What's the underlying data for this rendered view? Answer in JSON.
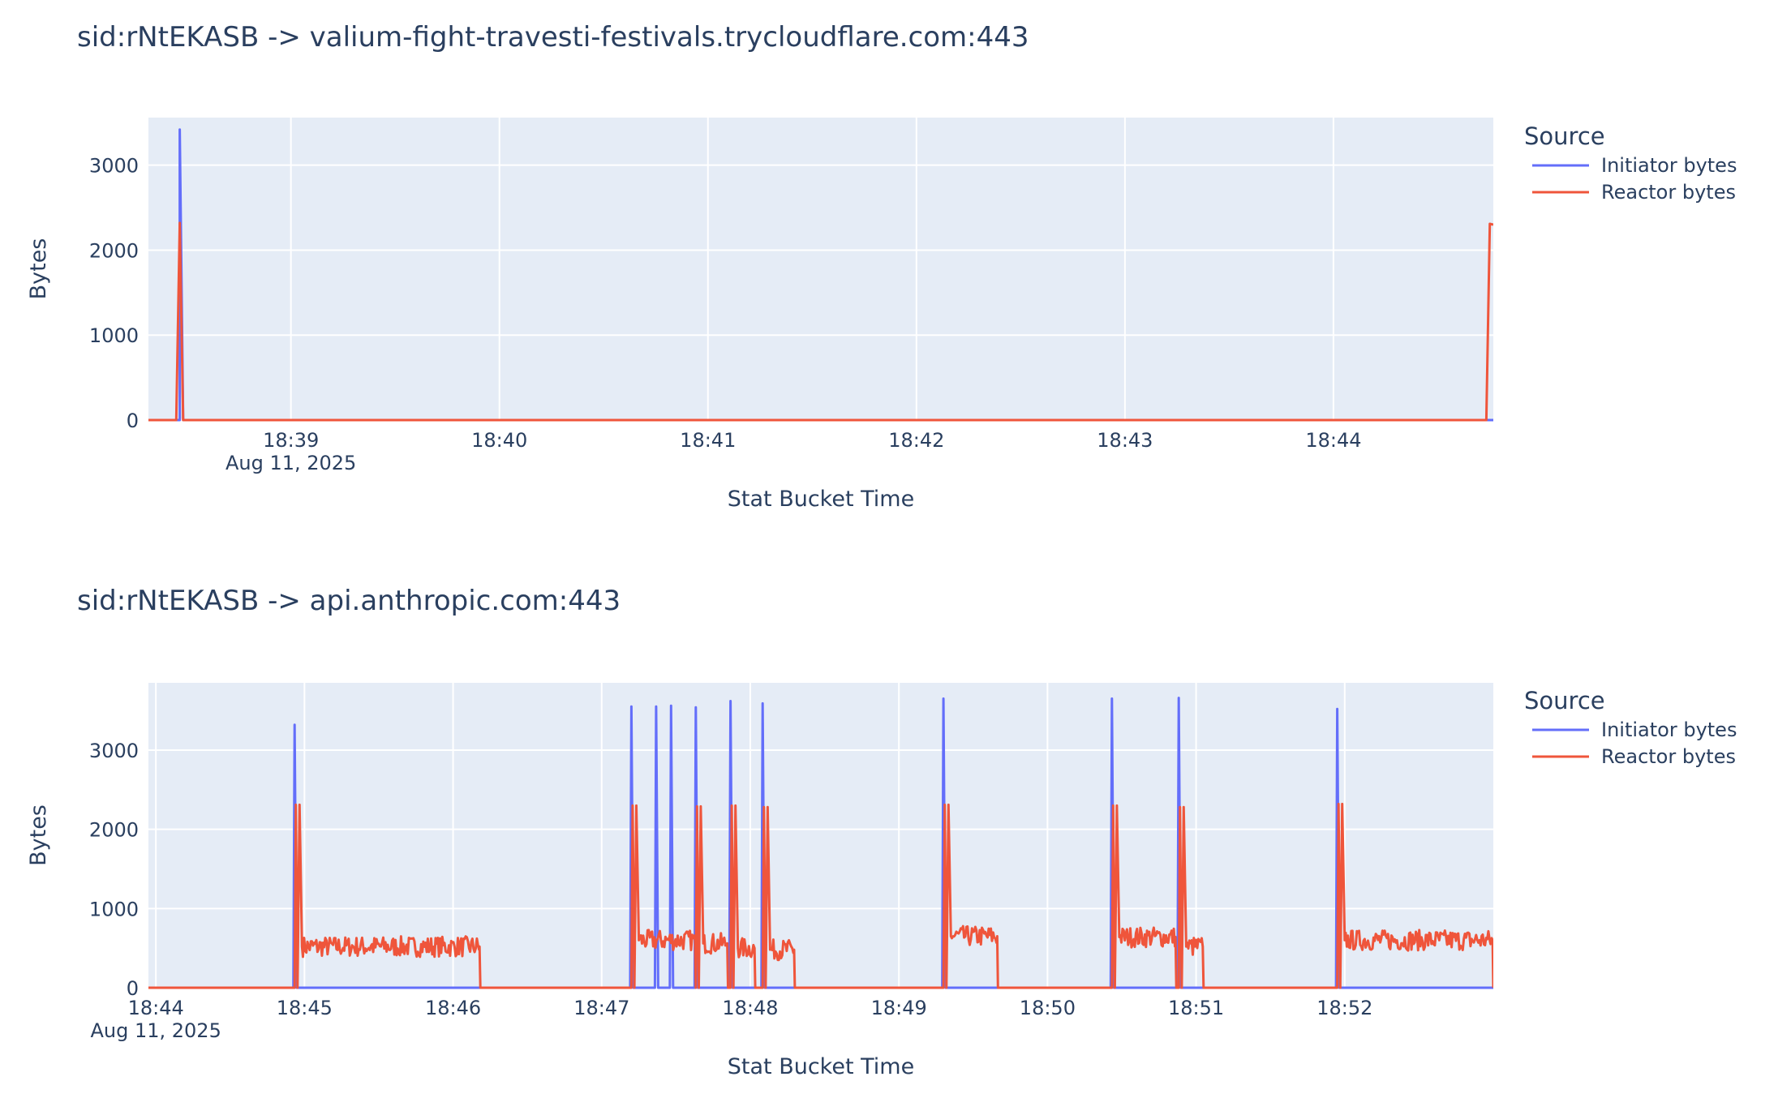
{
  "colors": {
    "initiator": "#636efa",
    "reactor": "#ef553b",
    "plot_bg": "#e5ecf6",
    "grid": "#ffffff",
    "text": "#2a3f5f"
  },
  "chart_data": [
    {
      "type": "line",
      "title": "sid:rNtEKASB -> valium-fight-travesti-festivals.trycloudflare.com:443",
      "xlabel": "Stat Bucket Time",
      "ylabel": "Bytes",
      "x_range": [
        "18:38:19",
        "18:44:46"
      ],
      "ylim": [
        0,
        3560
      ],
      "y_ticks": [
        0,
        1000,
        2000,
        3000
      ],
      "x_ticks": [
        {
          "t": "18:39:00",
          "label": "18:39",
          "sub": "Aug 11, 2025"
        },
        {
          "t": "18:40:00",
          "label": "18:40"
        },
        {
          "t": "18:41:00",
          "label": "18:41"
        },
        {
          "t": "18:42:00",
          "label": "18:42"
        },
        {
          "t": "18:43:00",
          "label": "18:43"
        },
        {
          "t": "18:44:00",
          "label": "18:44"
        }
      ],
      "legend_title": "Source",
      "legend_position": "top-right",
      "grid": true,
      "series": [
        {
          "name": "Initiator bytes",
          "color_key": "initiator",
          "points": [
            [
              "18:38:19",
              0
            ],
            [
              "18:38:28",
              0
            ],
            [
              "18:38:28",
              3420
            ],
            [
              "18:38:29",
              0
            ],
            [
              "18:44:46",
              0
            ]
          ]
        },
        {
          "name": "Reactor bytes",
          "color_key": "reactor",
          "points": [
            [
              "18:38:19",
              0
            ],
            [
              "18:38:27",
              0
            ],
            [
              "18:38:28",
              2320
            ],
            [
              "18:38:29",
              0
            ],
            [
              "18:44:44",
              0
            ],
            [
              "18:44:45",
              2310
            ],
            [
              "18:44:46",
              2300
            ]
          ]
        }
      ]
    },
    {
      "type": "line",
      "title": "sid:rNtEKASB -> api.anthropic.com:443",
      "xlabel": "Stat Bucket Time",
      "ylabel": "Bytes",
      "x_range": [
        "18:43:57",
        "18:53:00"
      ],
      "ylim": [
        0,
        3850
      ],
      "y_ticks": [
        0,
        1000,
        2000,
        3000
      ],
      "x_ticks": [
        {
          "t": "18:44:00",
          "label": "18:44",
          "sub": "Aug 11, 2025"
        },
        {
          "t": "18:45:00",
          "label": "18:45"
        },
        {
          "t": "18:46:00",
          "label": "18:46"
        },
        {
          "t": "18:47:00",
          "label": "18:47"
        },
        {
          "t": "18:48:00",
          "label": "18:48"
        },
        {
          "t": "18:49:00",
          "label": "18:49"
        },
        {
          "t": "18:50:00",
          "label": "18:50"
        },
        {
          "t": "18:51:00",
          "label": "18:51"
        },
        {
          "t": "18:52:00",
          "label": "18:52"
        }
      ],
      "legend_title": "Source",
      "legend_position": "top-right",
      "grid": true,
      "series": [
        {
          "name": "Initiator bytes",
          "color_key": "initiator",
          "spikes": [
            {
              "t": "18:44:56",
              "v": 3320
            },
            {
              "t": "18:47:12",
              "v": 3550
            },
            {
              "t": "18:47:22",
              "v": 3550
            },
            {
              "t": "18:47:28",
              "v": 3560
            },
            {
              "t": "18:47:38",
              "v": 3540
            },
            {
              "t": "18:47:52",
              "v": 3620
            },
            {
              "t": "18:48:05",
              "v": 3590
            },
            {
              "t": "18:49:18",
              "v": 3650
            },
            {
              "t": "18:50:26",
              "v": 3650
            },
            {
              "t": "18:50:53",
              "v": 3660
            },
            {
              "t": "18:51:57",
              "v": 3520
            }
          ]
        },
        {
          "name": "Reactor bytes",
          "color_key": "reactor",
          "bursts": [
            {
              "start": "18:44:56",
              "end": "18:46:11",
              "peak": 2310,
              "level": 520
            },
            {
              "start": "18:47:12",
              "end": "18:47:38",
              "peak": 2300,
              "level": 600
            },
            {
              "start": "18:47:38",
              "end": "18:47:51",
              "peak": 2290,
              "level": 560
            },
            {
              "start": "18:47:52",
              "end": "18:48:02",
              "peak": 2300,
              "level": 500
            },
            {
              "start": "18:48:05",
              "end": "18:48:18",
              "peak": 2280,
              "level": 480
            },
            {
              "start": "18:49:18",
              "end": "18:49:40",
              "peak": 2310,
              "level": 650
            },
            {
              "start": "18:50:26",
              "end": "18:50:52",
              "peak": 2300,
              "level": 640
            },
            {
              "start": "18:50:53",
              "end": "18:51:03",
              "peak": 2280,
              "level": 520
            },
            {
              "start": "18:51:57",
              "end": "18:53:00",
              "peak": 2320,
              "level": 600
            }
          ]
        }
      ]
    }
  ]
}
